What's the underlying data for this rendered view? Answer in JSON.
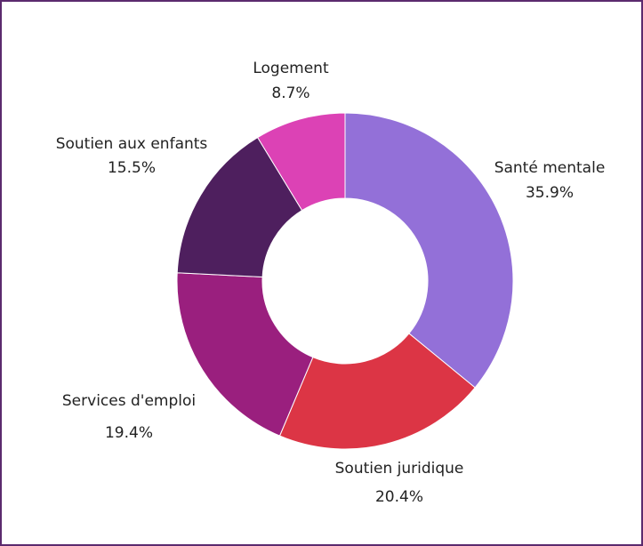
{
  "chart_data": {
    "type": "pie",
    "variant": "donut",
    "title": "",
    "slices": [
      {
        "label": "Santé mentale",
        "value": 35.9,
        "display": "35.9%",
        "color": "#9370d8"
      },
      {
        "label": "Soutien juridique",
        "value": 20.4,
        "display": "20.4%",
        "color": "#dc3545"
      },
      {
        "label": "Services d'emploi",
        "value": 19.4,
        "display": "19.4%",
        "color": "#9a1f7e"
      },
      {
        "label": "Soutien aux enfants",
        "value": 15.5,
        "display": "15.5%",
        "color": "#4e1f5e"
      },
      {
        "label": "Logement",
        "value": 8.7,
        "display": "8.7%",
        "color": "#dc42b5"
      }
    ],
    "legend": "none",
    "border_color": "#5b2a6e"
  }
}
